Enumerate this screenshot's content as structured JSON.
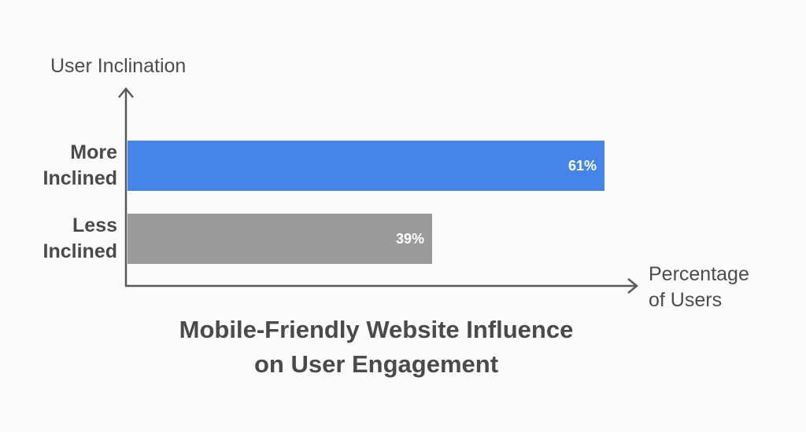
{
  "chart_data": {
    "type": "bar",
    "orientation": "horizontal",
    "title": "Mobile-Friendly Website Influence on User Engagement",
    "title_lines": [
      "Mobile-Friendly Website Influence",
      "on User Engagement"
    ],
    "xlabel": "Percentage of Users",
    "xlabel_lines": [
      "Percentage",
      "of Users"
    ],
    "ylabel": "User Inclination",
    "categories": [
      "More Inclined",
      "Less Inclined"
    ],
    "category_lines": [
      [
        "More",
        "Inclined"
      ],
      [
        "Less",
        "Inclined"
      ]
    ],
    "values": [
      61,
      39
    ],
    "value_labels": [
      "61%",
      "39%"
    ],
    "colors": [
      "#4585ea",
      "#9a999b"
    ],
    "xlim": [
      0,
      100
    ],
    "grid": false,
    "legend": null
  }
}
